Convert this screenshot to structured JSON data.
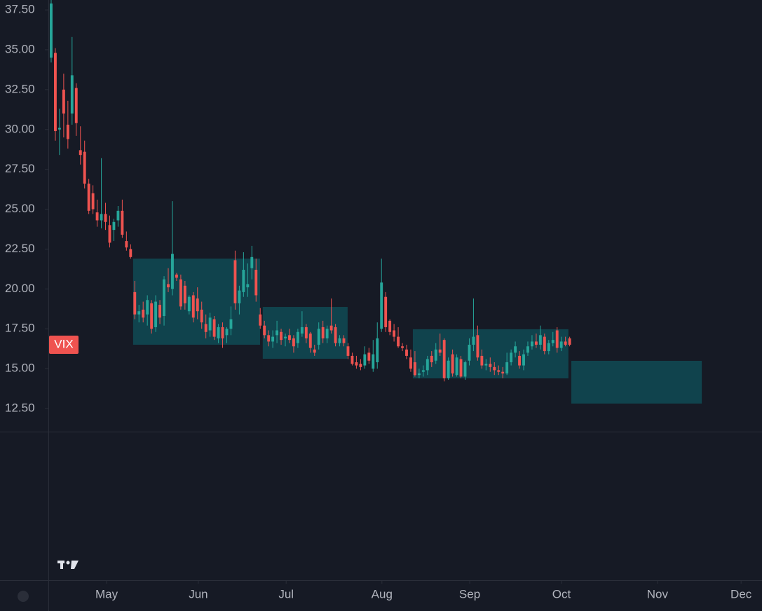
{
  "chart_data": {
    "type": "candlestick",
    "symbol_label": "VIX",
    "up_color": "#26a69a",
    "down_color": "#ef5350",
    "box_color": "#0f4b55",
    "ylim": [
      11.05,
      38.12
    ],
    "yticks": [
      {
        "value": 12.5,
        "label": "12.50"
      },
      {
        "value": 15,
        "label": "15.00"
      },
      {
        "value": 17.5,
        "label": "17.50"
      },
      {
        "value": 20,
        "label": "20.00"
      },
      {
        "value": 22.5,
        "label": "22.50"
      },
      {
        "value": 25,
        "label": "25.00"
      },
      {
        "value": 27.5,
        "label": "27.50"
      },
      {
        "value": 30,
        "label": "30.00"
      },
      {
        "value": 32.5,
        "label": "32.50"
      },
      {
        "value": 35,
        "label": "35.00"
      },
      {
        "value": 37.5,
        "label": "37.50"
      }
    ],
    "xlim": [
      -0.5,
      170
    ],
    "xticks": [
      {
        "value": 13.25,
        "label": "May"
      },
      {
        "value": 35.2,
        "label": "Jun"
      },
      {
        "value": 56.2,
        "label": "Jul"
      },
      {
        "value": 79.1,
        "label": "Aug"
      },
      {
        "value": 100.1,
        "label": "Sep"
      },
      {
        "value": 122.05,
        "label": "Oct"
      },
      {
        "value": 145.0,
        "label": "Nov"
      },
      {
        "value": 165.0,
        "label": "Dec"
      }
    ],
    "boxes": [
      {
        "x1": 19.6,
        "x2": 49.96,
        "top": 21.9,
        "bottom": 16.5
      },
      {
        "x1": 50.6,
        "x2": 70.9,
        "top": 18.87,
        "bottom": 15.62
      },
      {
        "x1": 86.5,
        "x2": 123.7,
        "top": 17.47,
        "bottom": 14.39
      },
      {
        "x1": 124.4,
        "x2": 155.6,
        "top": 15.49,
        "bottom": 12.81
      }
    ],
    "candles": [
      [
        34.5,
        38.2,
        34.2,
        37.9
      ],
      [
        34.8,
        35.1,
        29.3,
        29.9
      ],
      [
        30.0,
        31.3,
        28.4,
        30.1
      ],
      [
        32.5,
        33.5,
        29.5,
        31.0
      ],
      [
        30.3,
        31.8,
        28.8,
        29.4
      ],
      [
        31.0,
        35.8,
        30.3,
        33.4
      ],
      [
        32.6,
        32.9,
        29.6,
        30.4
      ],
      [
        28.7,
        30.2,
        27.8,
        28.4
      ],
      [
        28.6,
        29.3,
        26.3,
        26.6
      ],
      [
        26.6,
        26.9,
        24.7,
        24.9
      ],
      [
        26.0,
        26.5,
        24.7,
        25.0
      ],
      [
        24.8,
        25.6,
        23.9,
        24.3
      ],
      [
        24.3,
        28.2,
        23.8,
        24.7
      ],
      [
        24.7,
        25.4,
        23.7,
        24.2
      ],
      [
        24.0,
        24.6,
        22.6,
        22.9
      ],
      [
        23.7,
        24.4,
        23.0,
        24.2
      ],
      [
        24.3,
        25.2,
        23.9,
        24.9
      ],
      [
        24.9,
        25.6,
        23.2,
        23.4
      ],
      [
        23.0,
        23.6,
        22.4,
        22.6
      ],
      [
        22.5,
        22.8,
        21.9,
        22.0
      ],
      [
        19.8,
        20.5,
        18.1,
        18.4
      ],
      [
        18.4,
        19.0,
        17.9,
        18.6
      ],
      [
        18.7,
        19.2,
        17.9,
        18.2
      ],
      [
        18.4,
        19.6,
        17.7,
        19.3
      ],
      [
        19.1,
        19.3,
        17.2,
        17.5
      ],
      [
        17.6,
        19.6,
        17.3,
        19.2
      ],
      [
        19.0,
        19.3,
        17.8,
        18.2
      ],
      [
        18.3,
        20.8,
        17.7,
        20.6
      ],
      [
        20.3,
        21.3,
        19.8,
        20.1
      ],
      [
        20.0,
        25.5,
        19.6,
        22.2
      ],
      [
        20.9,
        21.0,
        20.5,
        20.7
      ],
      [
        20.6,
        20.9,
        18.7,
        18.9
      ],
      [
        20.2,
        20.5,
        18.7,
        19.1
      ],
      [
        18.6,
        19.6,
        18.4,
        19.5
      ],
      [
        19.6,
        19.8,
        17.9,
        18.2
      ],
      [
        19.4,
        20.1,
        18.1,
        18.6
      ],
      [
        18.7,
        19.2,
        17.5,
        17.9
      ],
      [
        17.8,
        18.4,
        16.9,
        17.3
      ],
      [
        17.4,
        18.5,
        17.0,
        18.2
      ],
      [
        18.1,
        18.3,
        16.8,
        17.0
      ],
      [
        16.9,
        17.8,
        16.6,
        17.6
      ],
      [
        17.6,
        17.9,
        16.3,
        16.9
      ],
      [
        17.1,
        17.6,
        16.6,
        17.5
      ],
      [
        17.5,
        18.9,
        17.1,
        18.1
      ],
      [
        21.8,
        22.4,
        18.7,
        19.1
      ],
      [
        19.1,
        20.2,
        18.4,
        19.9
      ],
      [
        19.8,
        22.3,
        19.5,
        21.2
      ],
      [
        20.1,
        21.6,
        19.5,
        20.3
      ],
      [
        21.3,
        22.7,
        20.6,
        22.0
      ],
      [
        21.2,
        21.9,
        19.2,
        19.6
      ],
      [
        18.4,
        18.8,
        17.5,
        17.7
      ],
      [
        17.7,
        18.0,
        16.9,
        17.1
      ],
      [
        17.1,
        17.4,
        16.4,
        16.7
      ],
      [
        16.7,
        17.4,
        16.3,
        17.0
      ],
      [
        17.1,
        18.0,
        16.6,
        17.4
      ],
      [
        17.3,
        17.5,
        16.5,
        16.8
      ],
      [
        16.9,
        17.2,
        16.4,
        17.0
      ],
      [
        17.1,
        17.5,
        16.6,
        16.8
      ],
      [
        16.9,
        17.1,
        16.0,
        16.4
      ],
      [
        16.6,
        17.5,
        16.3,
        17.3
      ],
      [
        17.2,
        18.6,
        17.0,
        17.6
      ],
      [
        17.6,
        17.8,
        16.6,
        16.9
      ],
      [
        17.2,
        17.3,
        16.0,
        16.3
      ],
      [
        16.2,
        16.5,
        15.8,
        16.0
      ],
      [
        16.5,
        17.9,
        16.2,
        17.5
      ],
      [
        17.6,
        18.0,
        16.6,
        16.9
      ],
      [
        16.9,
        17.7,
        16.6,
        17.5
      ],
      [
        17.7,
        19.4,
        17.2,
        17.4
      ],
      [
        17.6,
        17.8,
        16.4,
        16.6
      ],
      [
        16.6,
        17.1,
        16.4,
        16.9
      ],
      [
        16.9,
        17.1,
        16.4,
        16.6
      ],
      [
        16.4,
        16.6,
        15.6,
        15.8
      ],
      [
        15.8,
        16.0,
        15.2,
        15.3
      ],
      [
        15.4,
        15.8,
        15.0,
        15.2
      ],
      [
        15.3,
        15.6,
        14.9,
        15.1
      ],
      [
        15.2,
        16.4,
        15.0,
        15.9
      ],
      [
        16.0,
        16.3,
        15.3,
        15.5
      ],
      [
        15.0,
        16.8,
        14.8,
        15.9
      ],
      [
        15.4,
        17.9,
        15.0,
        16.9
      ],
      [
        17.5,
        21.9,
        17.3,
        20.4
      ],
      [
        19.5,
        19.8,
        17.3,
        17.6
      ],
      [
        18.0,
        18.1,
        17.1,
        17.3
      ],
      [
        17.4,
        17.8,
        16.7,
        17.0
      ],
      [
        17.0,
        17.6,
        16.3,
        16.4
      ],
      [
        16.4,
        16.6,
        16.1,
        16.3
      ],
      [
        16.2,
        16.5,
        15.6,
        15.8
      ],
      [
        15.7,
        16.2,
        14.8,
        15.0
      ],
      [
        15.4,
        16.1,
        14.5,
        14.6
      ],
      [
        14.6,
        15.0,
        14.4,
        14.7
      ],
      [
        14.8,
        15.2,
        14.5,
        14.9
      ],
      [
        14.9,
        15.8,
        14.6,
        15.6
      ],
      [
        15.8,
        16.1,
        15.1,
        15.4
      ],
      [
        15.5,
        16.6,
        15.3,
        16.2
      ],
      [
        16.2,
        17.2,
        15.8,
        16.0
      ],
      [
        16.8,
        16.9,
        14.2,
        14.4
      ],
      [
        14.4,
        15.7,
        14.3,
        15.5
      ],
      [
        15.9,
        16.2,
        14.5,
        14.7
      ],
      [
        14.6,
        15.9,
        14.5,
        15.7
      ],
      [
        15.6,
        15.8,
        14.4,
        14.5
      ],
      [
        14.5,
        15.5,
        14.3,
        15.4
      ],
      [
        15.5,
        16.9,
        15.2,
        16.5
      ],
      [
        16.5,
        19.4,
        16.1,
        17.0
      ],
      [
        17.1,
        17.7,
        15.5,
        15.7
      ],
      [
        15.8,
        16.2,
        15.0,
        15.2
      ],
      [
        15.2,
        15.6,
        14.9,
        15.3
      ],
      [
        15.3,
        15.7,
        14.8,
        15.1
      ],
      [
        15.1,
        15.4,
        14.6,
        14.9
      ],
      [
        14.9,
        15.2,
        14.6,
        14.8
      ],
      [
        14.8,
        15.1,
        14.4,
        14.7
      ],
      [
        14.7,
        16.0,
        14.6,
        15.4
      ],
      [
        15.4,
        16.2,
        15.2,
        16.0
      ],
      [
        16.0,
        16.7,
        15.7,
        16.4
      ],
      [
        15.8,
        16.1,
        15.0,
        15.2
      ],
      [
        15.2,
        16.2,
        14.9,
        15.9
      ],
      [
        16.0,
        16.7,
        15.8,
        16.4
      ],
      [
        16.4,
        17.1,
        16.2,
        16.7
      ],
      [
        16.7,
        17.2,
        16.3,
        16.5
      ],
      [
        16.5,
        17.7,
        16.2,
        17.1
      ],
      [
        17.0,
        17.2,
        15.9,
        16.1
      ],
      [
        16.1,
        16.8,
        15.9,
        16.6
      ],
      [
        16.6,
        17.3,
        16.4,
        16.8
      ],
      [
        17.4,
        17.6,
        16.0,
        16.3
      ],
      [
        16.3,
        17.0,
        16.1,
        16.7
      ],
      [
        16.7,
        17.0,
        16.4,
        16.5
      ],
      [
        16.9,
        17.0,
        16.4,
        16.5
      ]
    ]
  }
}
